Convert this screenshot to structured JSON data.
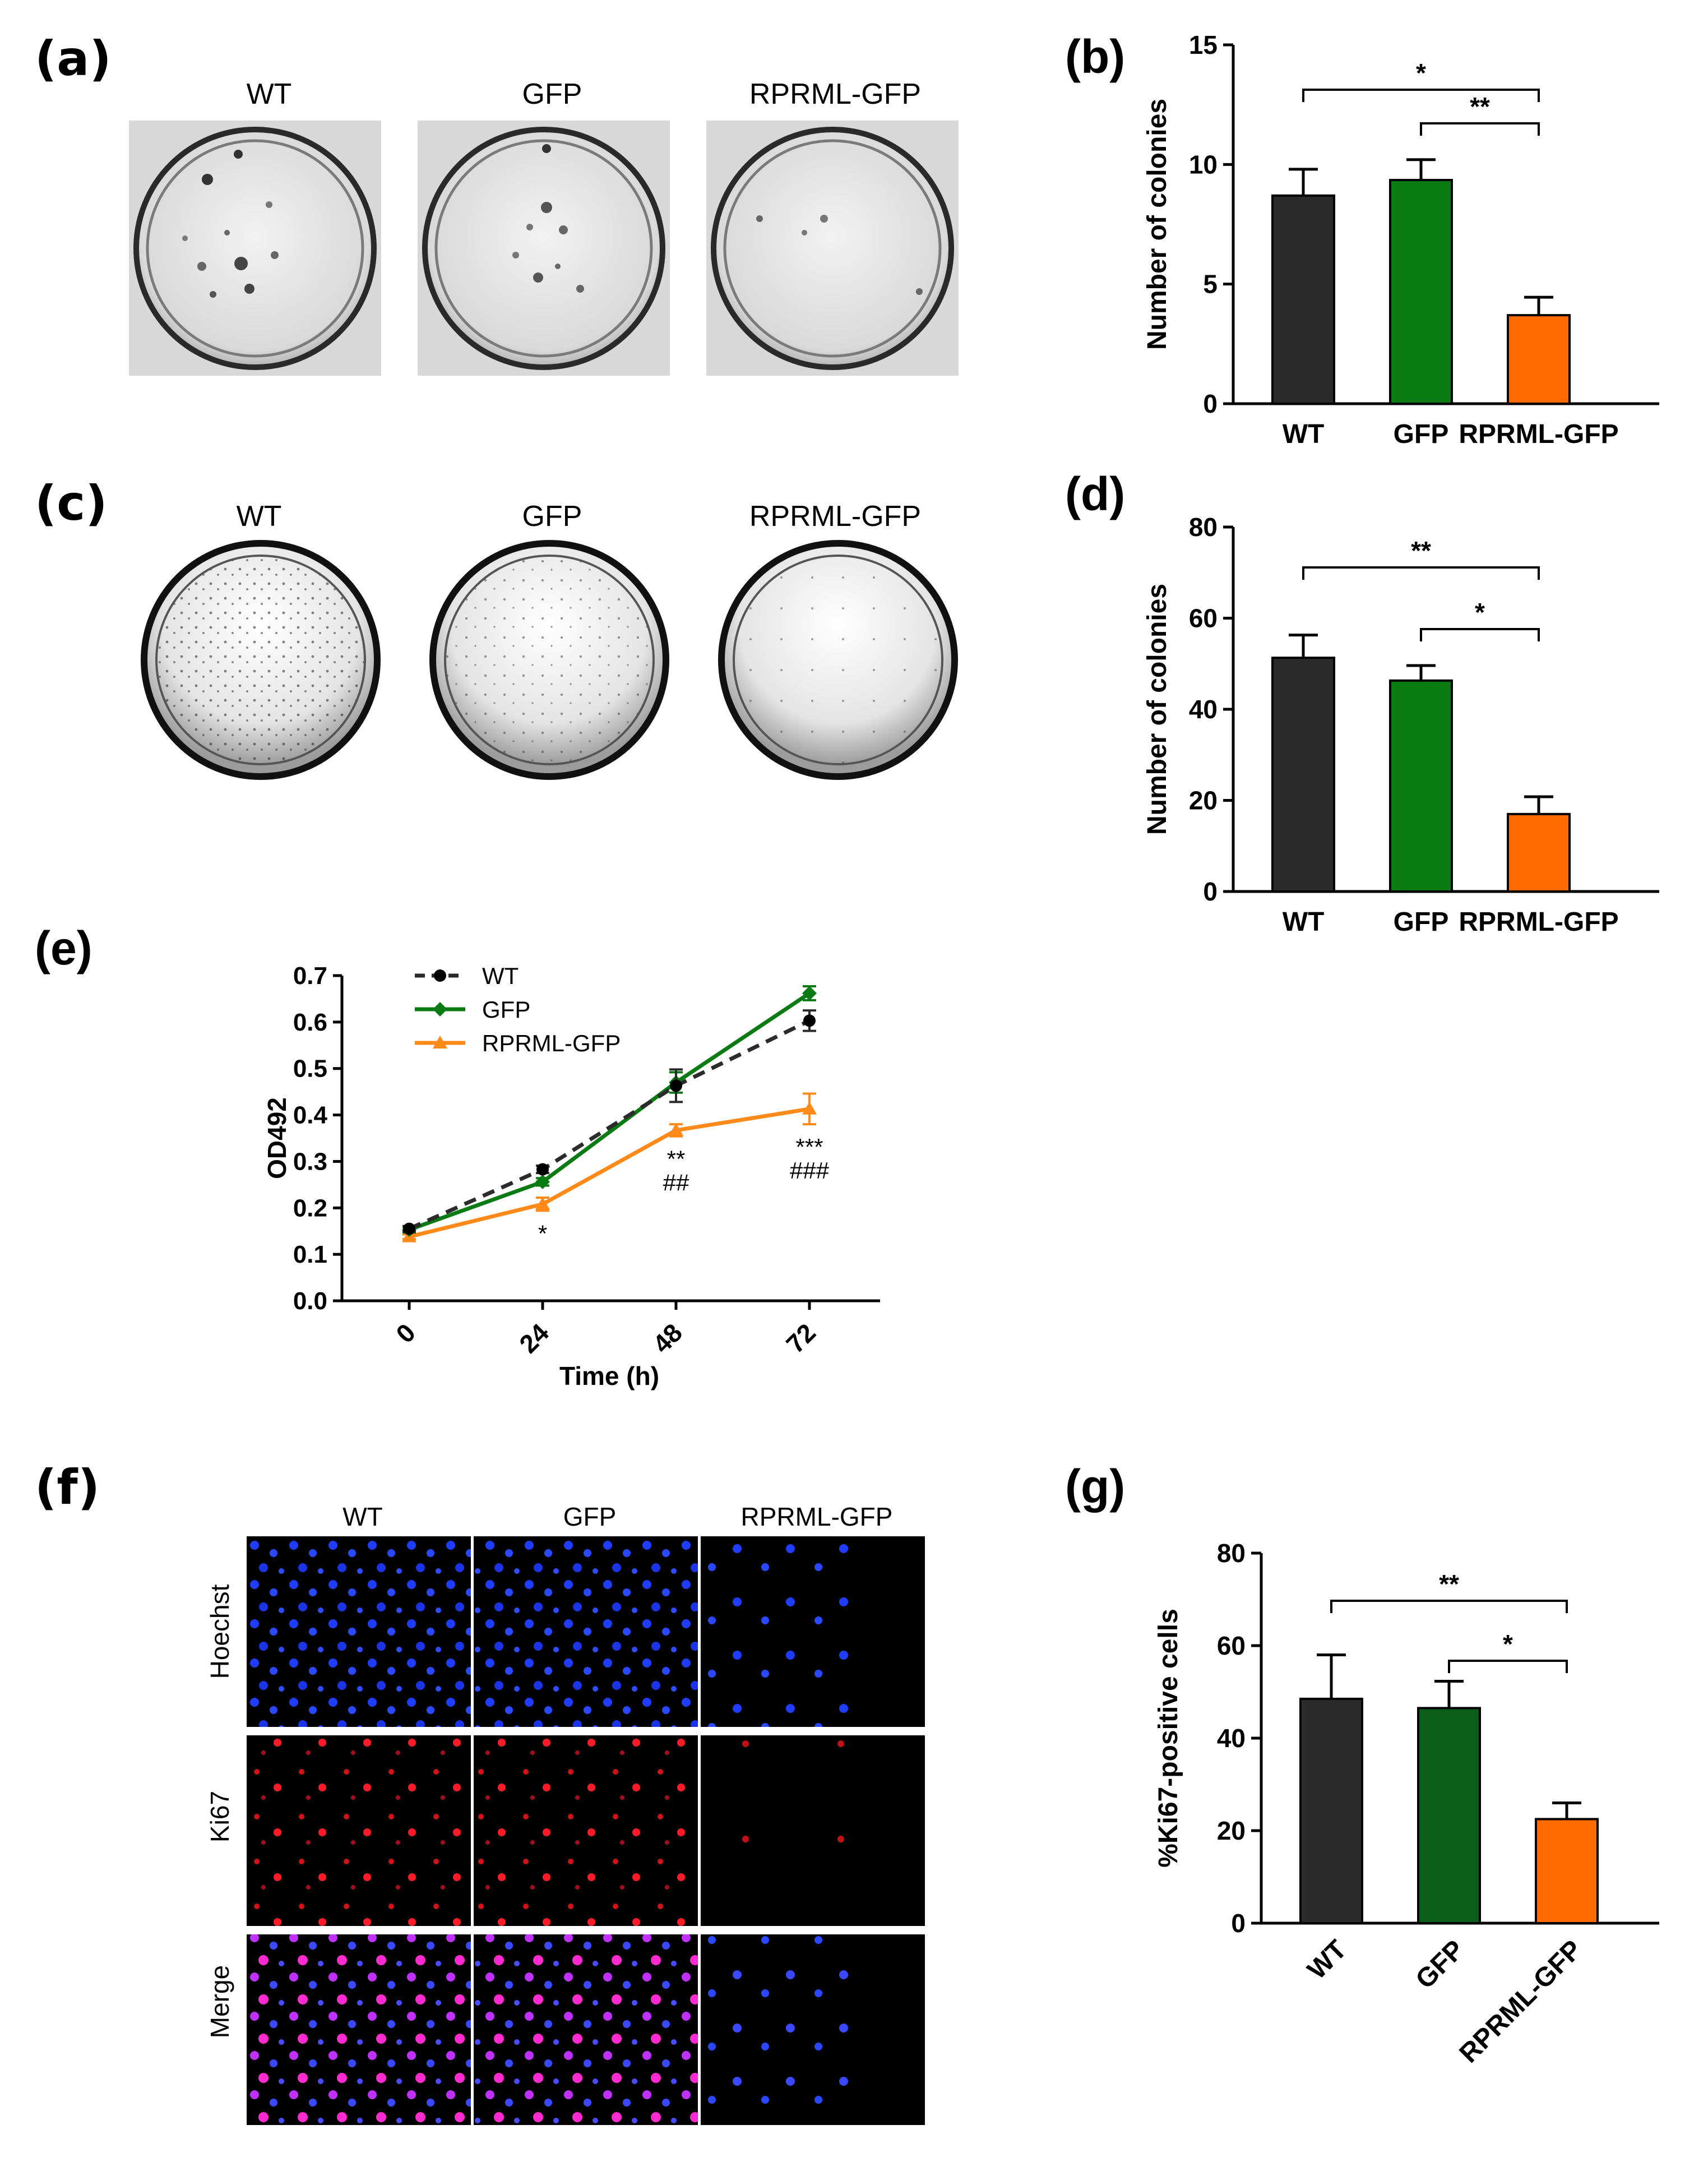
{
  "panels": {
    "a": {
      "letter": "(a)",
      "labels": [
        "WT",
        "GFP",
        "RPRML-GFP"
      ]
    },
    "c": {
      "letter": "(c)",
      "labels": [
        "WT",
        "GFP",
        "RPRML-GFP"
      ]
    },
    "f": {
      "letter": "(f)",
      "columns": [
        "WT",
        "GFP",
        "RPRML-GFP"
      ],
      "rows": [
        "Hoechst",
        "Ki67",
        "Merge"
      ]
    }
  },
  "colors": {
    "wt": "#2b2b2b",
    "gfp": "#0a7a12",
    "gfp_dark": "#0b5e1a",
    "rprml": "#ff6a00",
    "line_orange": "#ff8a1a"
  },
  "chart_data": [
    {
      "id": "b",
      "letter": "(b)",
      "type": "bar",
      "categories": [
        "WT",
        "GFP",
        "RPRML-GFP"
      ],
      "values": [
        8.7,
        9.35,
        3.7
      ],
      "errors": [
        1.1,
        0.85,
        0.75
      ],
      "ylabel": "Number of colonies",
      "ylim": [
        0,
        15
      ],
      "yticks": [
        0,
        5,
        10,
        15
      ],
      "significance": [
        {
          "from": 0,
          "to": 2,
          "label": "*"
        },
        {
          "from": 1,
          "to": 2,
          "label": "**"
        }
      ]
    },
    {
      "id": "d",
      "letter": "(d)",
      "type": "bar",
      "categories": [
        "WT",
        "GFP",
        "RPRML-GFP"
      ],
      "values": [
        51.3,
        46.3,
        17.0
      ],
      "errors": [
        5.0,
        3.3,
        3.8
      ],
      "ylabel": "Number of colonies",
      "ylim": [
        0,
        80
      ],
      "yticks": [
        0,
        20,
        40,
        60,
        80
      ],
      "significance": [
        {
          "from": 0,
          "to": 2,
          "label": "**"
        },
        {
          "from": 1,
          "to": 2,
          "label": "*"
        }
      ]
    },
    {
      "id": "e",
      "letter": "(e)",
      "type": "line",
      "x": [
        0,
        24,
        48,
        72
      ],
      "xticks": [
        "0",
        "24",
        "48",
        "72"
      ],
      "xlabel": "Time (h)",
      "ylabel": "OD492",
      "ylim": [
        0,
        0.7
      ],
      "yticks": [
        "0.0",
        "0.1",
        "0.2",
        "0.3",
        "0.4",
        "0.5",
        "0.6",
        "0.7"
      ],
      "series": [
        {
          "name": "WT",
          "values": [
            0.155,
            0.283,
            0.463,
            0.603
          ],
          "errors": [
            0.006,
            0.008,
            0.035,
            0.022
          ],
          "style": "dashed",
          "marker": "circle"
        },
        {
          "name": "GFP",
          "values": [
            0.153,
            0.256,
            0.47,
            0.662
          ],
          "errors": [
            0.006,
            0.008,
            0.022,
            0.015
          ],
          "style": "solid",
          "marker": "diamond"
        },
        {
          "name": "RPRML-GFP",
          "values": [
            0.138,
            0.208,
            0.367,
            0.413
          ],
          "errors": [
            0.005,
            0.014,
            0.013,
            0.033
          ],
          "style": "solid",
          "marker": "triangle"
        }
      ],
      "annotations": [
        {
          "x": 24,
          "lines": [
            "*"
          ]
        },
        {
          "x": 48,
          "lines": [
            "**",
            "##"
          ]
        },
        {
          "x": 72,
          "lines": [
            "***",
            "###"
          ]
        }
      ]
    },
    {
      "id": "g",
      "letter": "(g)",
      "type": "bar",
      "categories": [
        "WT",
        "GFP",
        "RPRML-GFP"
      ],
      "values": [
        48.5,
        46.5,
        22.5
      ],
      "errors": [
        9.5,
        5.8,
        3.5
      ],
      "ylabel": "%Ki67-positive cells",
      "ylim": [
        0,
        80
      ],
      "yticks": [
        0,
        20,
        40,
        60,
        80
      ],
      "rotated_labels": true,
      "significance": [
        {
          "from": 0,
          "to": 2,
          "label": "**"
        },
        {
          "from": 1,
          "to": 2,
          "label": "*"
        }
      ]
    }
  ]
}
